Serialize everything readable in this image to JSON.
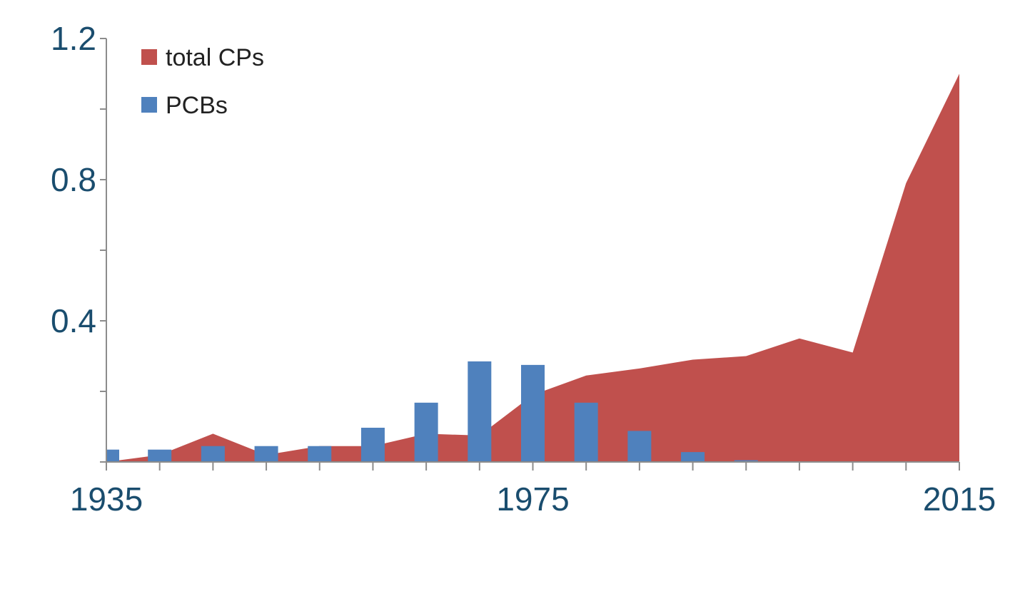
{
  "chart_data": {
    "type": "area",
    "title": "",
    "xlabel": "",
    "ylabel": "",
    "xlim": [
      1935,
      2015
    ],
    "ylim": [
      0,
      1.2
    ],
    "x_ticks": [
      1935,
      1975,
      2015
    ],
    "y_ticks": [
      0.4,
      0.8,
      1.2
    ],
    "y_minor_ticks": [
      0.2,
      0.6,
      1.0
    ],
    "x_minor_ticks": [
      1935,
      1940,
      1945,
      1950,
      1955,
      1960,
      1965,
      1970,
      1975,
      1980,
      1985,
      1990,
      1995,
      2000,
      2005,
      2010,
      2015
    ],
    "x_tick_labels": [
      "1935",
      "1975",
      "2015"
    ],
    "y_tick_labels": [
      "0.4",
      "0.8",
      "1.2"
    ],
    "grid": false,
    "legend_position": "top-left",
    "series": [
      {
        "name": "total CPs",
        "kind": "area",
        "color": "#c0504d",
        "x": [
          1935,
          1940,
          1945,
          1950,
          1955,
          1960,
          1965,
          1970,
          1975,
          1980,
          1985,
          1990,
          1995,
          2000,
          2005,
          2010,
          2015
        ],
        "values": [
          0.0,
          0.02,
          0.08,
          0.02,
          0.045,
          0.045,
          0.08,
          0.075,
          0.19,
          0.245,
          0.265,
          0.29,
          0.3,
          0.35,
          0.31,
          0.79,
          1.1
        ]
      },
      {
        "name": "PCBs",
        "kind": "bar",
        "color": "#4f81bd",
        "x": [
          1935,
          1940,
          1945,
          1950,
          1955,
          1960,
          1965,
          1970,
          1975,
          1980,
          1985,
          1990,
          1995
        ],
        "values": [
          0.035,
          0.035,
          0.045,
          0.045,
          0.045,
          0.097,
          0.168,
          0.285,
          0.275,
          0.168,
          0.088,
          0.028,
          0.005
        ]
      }
    ]
  }
}
